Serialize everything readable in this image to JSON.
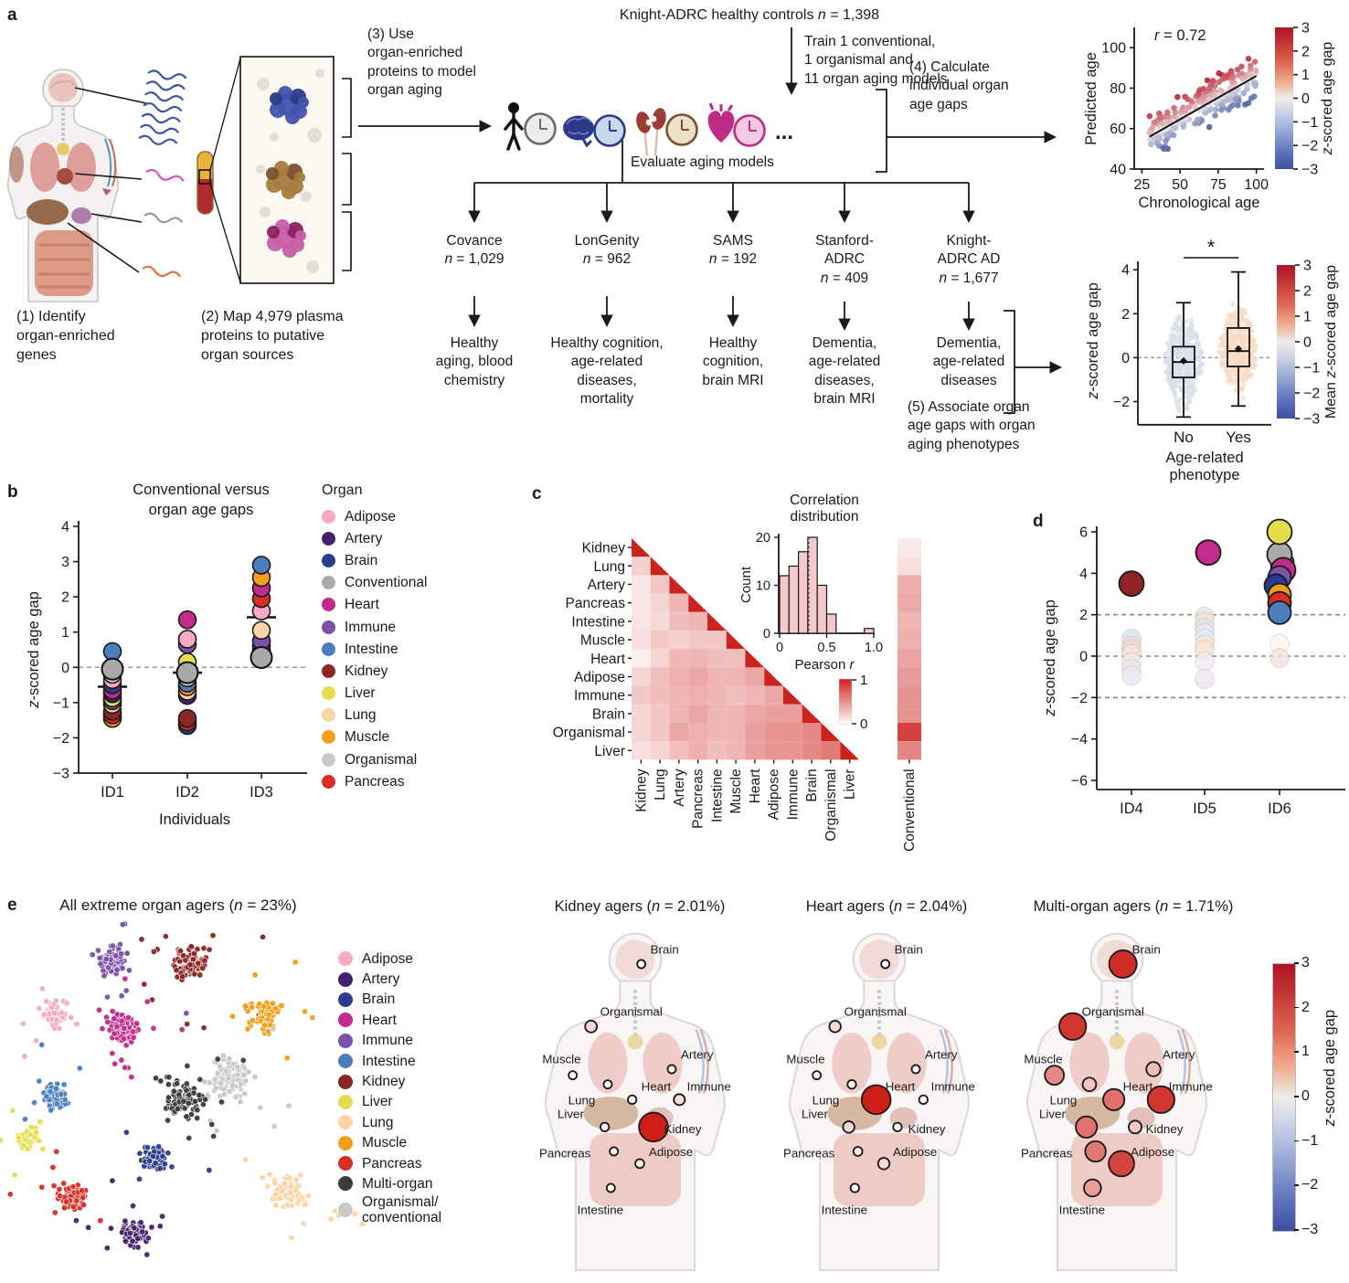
{
  "labels": {
    "a": "a",
    "b": "b",
    "c": "c",
    "d": "d",
    "e": "e"
  },
  "accent_colors": {
    "cmap_top": "#AF1126",
    "cmap_mid": "#EFEDE8",
    "cmap_bottom": "#3D4FA2",
    "heat_red": "#CD231E"
  },
  "organ_colors": {
    "Adipose": "#F7A9C5",
    "Artery": "#45216B",
    "Brain": "#2C3C8D",
    "Conventional": "#A9A9A9",
    "Heart": "#C12B8B",
    "Immune": "#7A52A8",
    "Intestine": "#4C7EBE",
    "Kidney": "#8C2523",
    "Liver": "#E4DE4E",
    "Lung": "#FAD4A5",
    "Muscle": "#F49D19",
    "Organismal": "#C9C9C9",
    "Pancreas": "#DA2D26",
    "Multi-organ": "#3B3B3B",
    "Organismal/conventional": "#C9C9C9"
  },
  "panel_a": {
    "step1": "(1) Identify\norgan-enriched\ngenes",
    "step2": "(2) Map 4,979 plasma\nproteins to putative\norgan sources",
    "step3": "(3) Use\norgan-enriched\nproteins to model\norgan aging",
    "step4": "(4) Calculate\nindividual organ\nage gaps",
    "step5": "(5) Associate organ\nage gaps with organ\naging phenotypes",
    "controls_title": "Knight-ADRC healthy controls n = 1,398",
    "train_note": "Train 1 conventional,\n1 organismal and\n11 organ aging models",
    "evaluate_note": "Evaluate aging models",
    "ellipsis": "...",
    "icons": [
      "person-clock",
      "brain-clock",
      "kidney-clock",
      "heart-clock"
    ],
    "cohorts": [
      {
        "name": "Covance\nn = 1,029",
        "outcome": "Healthy\naging, blood\nchemistry"
      },
      {
        "name": "LonGenity\nn = 962",
        "outcome": "Healthy cognition,\nage-related\ndiseases,\nmortality"
      },
      {
        "name": "SAMS\nn = 192",
        "outcome": "Healthy\ncognition,\nbrain MRI"
      },
      {
        "name": "Stanford-\nADRC\nn = 409",
        "outcome": "Dementia,\nage-related\ndiseases,\nbrain MRI"
      },
      {
        "name": "Knight-\nADRC AD\nn = 1,677",
        "outcome": "Dementia,\nage-related\ndiseases"
      }
    ]
  },
  "chart_data": [
    {
      "id": "a_scatter",
      "type": "scatter",
      "annotation": "r = 0.72",
      "xlabel": "Chronological age",
      "ylabel": "Predicted age",
      "x_ticks": [
        25,
        50,
        75,
        100
      ],
      "y_ticks": [
        40,
        60,
        80,
        100
      ],
      "xlim": [
        20,
        105
      ],
      "ylim": [
        40,
        110
      ],
      "n_points": 210,
      "trend": {
        "x0": 30,
        "y0": 56,
        "x1": 100,
        "y1": 86
      },
      "point_model": {
        "intercept": 43,
        "slope": 0.43,
        "resid_sd": 5,
        "resid_to_z": 4.2
      },
      "colorbar": {
        "label": "z-scored age gap",
        "ticks": [
          3,
          2,
          1,
          0,
          -1,
          -2,
          -3
        ]
      }
    },
    {
      "id": "a_box",
      "type": "box-violin",
      "ylabel": "z-scored age gap",
      "xlabel": "Age-related\nphenotype",
      "y_ticks": [
        4,
        2,
        0,
        -2
      ],
      "ylim": [
        -3.1,
        4.5
      ],
      "significance": "*",
      "zero_line": 0,
      "groups": [
        {
          "label": "No",
          "cloud_color": "#D9DFE9",
          "center": -0.1,
          "sd": 0.95,
          "box": [
            -0.9,
            0.5
          ],
          "median": -0.2,
          "mean": -0.15,
          "whiskers": [
            -2.7,
            2.5
          ]
        },
        {
          "label": "Yes",
          "cloud_color": "#F8DCC6",
          "center": 0.3,
          "sd": 0.85,
          "box": [
            -0.4,
            1.35
          ],
          "median": 0.3,
          "mean": 0.4,
          "whiskers": [
            -2.2,
            3.9
          ]
        }
      ],
      "colorbar": {
        "label": "Mean z-scored age gap",
        "ticks": [
          3,
          2,
          1,
          0,
          -1,
          -2,
          -3
        ]
      }
    },
    {
      "id": "b_strip",
      "type": "strip",
      "title": "Conventional versus\norgan age gaps",
      "legend_title": "Organ",
      "legend_items": [
        "Adipose",
        "Artery",
        "Brain",
        "Conventional",
        "Heart",
        "Immune",
        "Intestine",
        "Kidney",
        "Liver",
        "Lung",
        "Muscle",
        "Organismal",
        "Pancreas"
      ],
      "ylabel": "z-scored age gap",
      "xlabel": "Individuals",
      "y_ticks": [
        4,
        3,
        2,
        1,
        0,
        -1,
        -2,
        -3
      ],
      "ylim": [
        -3,
        4
      ],
      "categories": [
        "ID1",
        "ID2",
        "ID3"
      ],
      "medians": [
        -0.55,
        -0.15,
        1.42
      ],
      "points": {
        "ID1": [
          [
            "Intestine",
            0.45
          ],
          [
            "Conventional",
            -0.05
          ],
          [
            "Organismal",
            -0.2
          ],
          [
            "Adipose",
            -0.35
          ],
          [
            "Brain",
            -0.5
          ],
          [
            "Heart",
            -0.65
          ],
          [
            "Artery",
            -0.75
          ],
          [
            "Liver",
            -0.87
          ],
          [
            "Immune",
            -0.95
          ],
          [
            "Lung",
            -1.05
          ],
          [
            "Kidney",
            -1.25
          ],
          [
            "Pancreas",
            -1.35
          ],
          [
            "Muscle",
            -1.45
          ]
        ],
        "ID2": [
          [
            "Heart",
            1.35
          ],
          [
            "Adipose",
            0.8
          ],
          [
            "Immune",
            0.65
          ],
          [
            "Liver",
            0.15
          ],
          [
            "Conventional",
            -0.15
          ],
          [
            "Organismal",
            -0.3
          ],
          [
            "Intestine",
            -0.45
          ],
          [
            "Muscle",
            -0.55
          ],
          [
            "Lung",
            -0.68
          ],
          [
            "Artery",
            -0.8
          ],
          [
            "Kidney",
            -1.45
          ],
          [
            "Pancreas",
            -1.55
          ],
          [
            "Brain",
            -1.65
          ]
        ],
        "ID3": [
          [
            "Intestine",
            2.9
          ],
          [
            "Muscle",
            2.55
          ],
          [
            "Heart",
            2.25
          ],
          [
            "Pancreas",
            1.95
          ],
          [
            "Adipose",
            1.6
          ],
          [
            "Lung",
            1.05
          ],
          [
            "Immune",
            0.75
          ],
          [
            "Brain",
            0.6
          ],
          [
            "Artery",
            0.5
          ],
          [
            "Kidney",
            0.44
          ],
          [
            "Liver",
            0.38
          ],
          [
            "Organismal",
            0.32
          ],
          [
            "Conventional",
            0.28
          ]
        ]
      }
    },
    {
      "id": "c_heatmap",
      "type": "heatmap",
      "organs": [
        "Kidney",
        "Lung",
        "Artery",
        "Pancreas",
        "Intestine",
        "Muscle",
        "Heart",
        "Adipose",
        "Immune",
        "Brain",
        "Organismal",
        "Liver"
      ],
      "matrix": [
        [
          1.0
        ],
        [
          0.18,
          1.0
        ],
        [
          0.1,
          0.22,
          1.0
        ],
        [
          0.1,
          0.16,
          0.3,
          1.0
        ],
        [
          0.1,
          0.14,
          0.26,
          0.3,
          1.0
        ],
        [
          0.12,
          0.22,
          0.18,
          0.22,
          0.22,
          1.0
        ],
        [
          0.06,
          0.16,
          0.3,
          0.3,
          0.26,
          0.26,
          1.0
        ],
        [
          0.16,
          0.26,
          0.32,
          0.36,
          0.3,
          0.3,
          0.36,
          1.0
        ],
        [
          0.22,
          0.26,
          0.3,
          0.32,
          0.3,
          0.26,
          0.3,
          0.36,
          1.0
        ],
        [
          0.16,
          0.22,
          0.3,
          0.36,
          0.3,
          0.3,
          0.36,
          0.4,
          0.4,
          1.0
        ],
        [
          0.16,
          0.22,
          0.36,
          0.32,
          0.3,
          0.3,
          0.4,
          0.44,
          0.46,
          0.5,
          1.0
        ],
        [
          0.12,
          0.16,
          0.26,
          0.32,
          0.26,
          0.3,
          0.4,
          0.44,
          0.44,
          0.5,
          0.56,
          1.0
        ]
      ],
      "conventional_label": "Conventional",
      "conventional_values": [
        0.08,
        0.12,
        0.33,
        0.35,
        0.3,
        0.32,
        0.38,
        0.42,
        0.46,
        0.46,
        0.85,
        0.52
      ],
      "colorbar_ticks": [
        "1",
        "0"
      ],
      "inset": {
        "title": "Correlation\ndistribution",
        "xlabel": "Pearson r",
        "ylabel": "Count",
        "x_ticks": [
          "0",
          "0.5",
          "1.0"
        ],
        "y_ticks": [
          0,
          10,
          20
        ],
        "bin_width": 0.1,
        "counts": [
          12,
          14,
          17,
          20,
          10,
          4,
          0,
          0,
          0,
          1
        ],
        "median_line": 0.31
      }
    },
    {
      "id": "d_strip",
      "type": "strip",
      "ylabel": "z-scored age gap",
      "y_ticks": [
        6,
        4,
        2,
        0,
        -2,
        -4,
        -6
      ],
      "ylim": [
        -7,
        7
      ],
      "dashed_lines": [
        2,
        0,
        -2
      ],
      "categories": [
        "ID4",
        "ID5",
        "ID6"
      ],
      "solid_points": {
        "ID4": [
          [
            "Kidney",
            3.5
          ]
        ],
        "ID5": [
          [
            "Heart",
            5.0
          ]
        ],
        "ID6": [
          [
            "Organismal",
            4.5
          ],
          [
            "Conventional",
            4.9
          ],
          [
            "Heart",
            4.15
          ],
          [
            "Immune",
            3.8
          ],
          [
            "Brain",
            3.4
          ],
          [
            "Liver",
            6.0
          ],
          [
            "Muscle",
            2.95
          ],
          [
            "Pancreas",
            2.55
          ],
          [
            "Intestine",
            2.1
          ]
        ]
      },
      "faded_points": {
        "ID4": [
          [
            0.85,
            "#DCE3F0"
          ],
          [
            0.5,
            "#F3D8DC"
          ],
          [
            0.3,
            "#F1DDD5"
          ],
          [
            0.1,
            "#F0E7DB"
          ],
          [
            -0.3,
            "#F1EDDE"
          ],
          [
            -0.6,
            "#E8E6EE"
          ],
          [
            -0.95,
            "#EBE8F2"
          ]
        ],
        "ID5": [
          [
            1.9,
            "#E4E4E4"
          ],
          [
            1.65,
            "#F8E4CD"
          ],
          [
            1.35,
            "#DEE5EF"
          ],
          [
            1.1,
            "#E7EAF1"
          ],
          [
            0.85,
            "#E5E9F1"
          ],
          [
            0.55,
            "#F9E7D3"
          ],
          [
            0.3,
            "#F7E4D5"
          ],
          [
            -0.25,
            "#F0EAF3"
          ],
          [
            -1.1,
            "#EDE7F1"
          ]
        ],
        "ID6": [
          [
            0.6,
            "#FCF4E9"
          ],
          [
            -0.1,
            "#F4E3DF"
          ]
        ]
      }
    },
    {
      "id": "e_tsne",
      "type": "scatter-tsne",
      "title": "All extreme organ agers (n = 23%)",
      "legend_items": [
        "Adipose",
        "Artery",
        "Brain",
        "Heart",
        "Immune",
        "Intestine",
        "Kidney",
        "Liver",
        "Lung",
        "Muscle",
        "Pancreas",
        "Multi-organ",
        "Organismal/\nconventional"
      ],
      "clusters": [
        {
          "organ": "Immune",
          "x": 118,
          "y": 32,
          "n": 75,
          "s": 16
        },
        {
          "organ": "Kidney",
          "x": 200,
          "y": 34,
          "n": 90,
          "s": 20
        },
        {
          "organ": "Adipose",
          "x": 52,
          "y": 94,
          "n": 55,
          "s": 15
        },
        {
          "organ": "Heart",
          "x": 125,
          "y": 107,
          "n": 90,
          "s": 17
        },
        {
          "organ": "Muscle",
          "x": 283,
          "y": 94,
          "n": 70,
          "s": 17
        },
        {
          "organ": "Intestine",
          "x": 52,
          "y": 180,
          "n": 60,
          "s": 16
        },
        {
          "organ": "Organismal/conventional",
          "x": 243,
          "y": 162,
          "n": 85,
          "s": 24
        },
        {
          "organ": "Multi-organ",
          "x": 192,
          "y": 187,
          "n": 90,
          "s": 22
        },
        {
          "organ": "Liver",
          "x": 22,
          "y": 227,
          "n": 45,
          "s": 12
        },
        {
          "organ": "Brain",
          "x": 160,
          "y": 250,
          "n": 55,
          "s": 14
        },
        {
          "organ": "Pancreas",
          "x": 70,
          "y": 294,
          "n": 65,
          "s": 16
        },
        {
          "organ": "Artery",
          "x": 138,
          "y": 332,
          "n": 70,
          "s": 16
        },
        {
          "organ": "Lung",
          "x": 308,
          "y": 285,
          "n": 80,
          "s": 19
        }
      ]
    },
    {
      "id": "e_bodies",
      "type": "body-maps",
      "organ_labels": [
        "Brain",
        "Organismal",
        "Muscle",
        "Lung",
        "Heart",
        "Artery",
        "Immune",
        "Liver",
        "Kidney",
        "Pancreas",
        "Adipose",
        "Intestine"
      ],
      "panels": [
        {
          "title": "Kidney agers (n = 2.01%)",
          "values": {
            "Brain": 0.05,
            "Organismal": 0.55,
            "Muscle": 0.05,
            "Lung": 0.05,
            "Heart": 0.1,
            "Artery": 0.05,
            "Immune": 0.45,
            "Liver": 0.1,
            "Kidney": 3.0,
            "Pancreas": 0.05,
            "Adipose": 0.15,
            "Intestine": 0.05
          }
        },
        {
          "title": "Heart agers (n = 2.04%)",
          "values": {
            "Brain": 0.05,
            "Organismal": 0.5,
            "Muscle": 0.05,
            "Lung": 0.1,
            "Heart": 3.0,
            "Artery": 0.05,
            "Immune": 0.1,
            "Liver": 0.5,
            "Kidney": 0.1,
            "Pancreas": 0.15,
            "Adipose": 0.5,
            "Intestine": 0.1
          }
        },
        {
          "title": "Multi-organ agers (n = 1.71%)",
          "values": {
            "Brain": 2.8,
            "Organismal": 2.7,
            "Muscle": 1.6,
            "Lung": 0.8,
            "Heart": 1.9,
            "Artery": 0.9,
            "Immune": 2.7,
            "Liver": 1.9,
            "Kidney": 0.7,
            "Pancreas": 1.8,
            "Adipose": 2.5,
            "Intestine": 1.3
          }
        }
      ],
      "colorbar": {
        "label": "z-scored age gap",
        "ticks": [
          3,
          2,
          1,
          0,
          -1,
          -2,
          -3
        ]
      }
    }
  ]
}
